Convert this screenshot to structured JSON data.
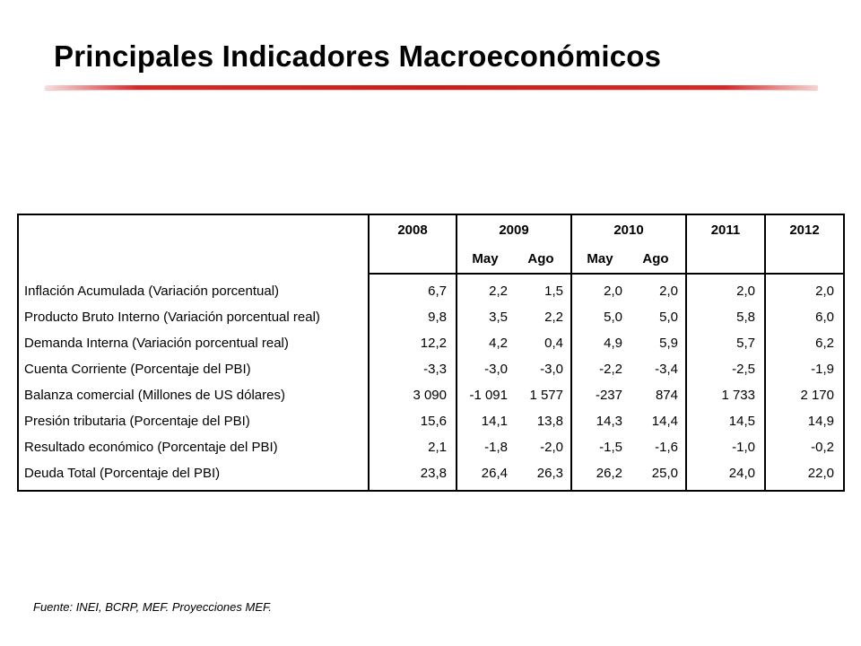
{
  "title": "Principales Indicadores Macroeconómicos",
  "table": {
    "years": [
      "2008",
      "2009",
      "2010",
      "2011",
      "2012"
    ],
    "subheaders": {
      "y2009": [
        "May",
        "Ago"
      ],
      "y2010": [
        "May",
        "Ago"
      ]
    },
    "rows": [
      {
        "label": "Inflación Acumulada (Variación porcentual)",
        "values": [
          "6,7",
          "2,2",
          "1,5",
          "2,0",
          "2,0",
          "2,0",
          "2,0"
        ]
      },
      {
        "label": "Producto Bruto Interno (Variación porcentual real)",
        "values": [
          "9,8",
          "3,5",
          "2,2",
          "5,0",
          "5,0",
          "5,8",
          "6,0"
        ]
      },
      {
        "label": "Demanda Interna (Variación porcentual real)",
        "values": [
          "12,2",
          "4,2",
          "0,4",
          "4,9",
          "5,9",
          "5,7",
          "6,2"
        ]
      },
      {
        "label": "Cuenta Corriente (Porcentaje del PBI)",
        "values": [
          "-3,3",
          "-3,0",
          "-3,0",
          "-2,2",
          "-3,4",
          "-2,5",
          "-1,9"
        ]
      },
      {
        "label": "Balanza comercial (Millones de US dólares)",
        "values": [
          "3 090",
          "-1 091",
          "1 577",
          "-237",
          "874",
          "1 733",
          "2 170"
        ]
      },
      {
        "label": "Presión tributaria (Porcentaje del PBI)",
        "values": [
          "15,6",
          "14,1",
          "13,8",
          "14,3",
          "14,4",
          "14,5",
          "14,9"
        ]
      },
      {
        "label": "Resultado económico (Porcentaje del PBI)",
        "values": [
          "2,1",
          "-1,8",
          "-2,0",
          "-1,5",
          "-1,6",
          "-1,0",
          "-0,2"
        ]
      },
      {
        "label": "Deuda Total (Porcentaje del PBI)",
        "values": [
          "23,8",
          "26,4",
          "26,3",
          "26,2",
          "25,0",
          "24,0",
          "22,0"
        ]
      }
    ]
  },
  "footer": "Fuente:  INEI, BCRP, MEF. Proyecciones MEF."
}
